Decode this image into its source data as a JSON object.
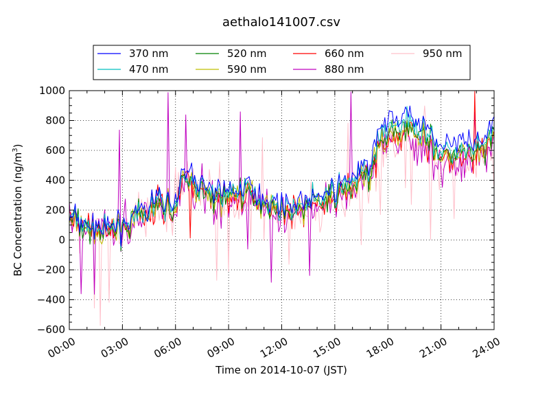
{
  "chart_data": {
    "type": "line",
    "title": "aethalo141007.csv",
    "xlabel": "Time on 2014-10-07 (JST)",
    "ylabel_main": "BC Concentration (ng/m",
    "ylabel_sup": "3",
    "ylabel_close": ")",
    "xlim": [
      0,
      24
    ],
    "ylim": [
      -600,
      1000
    ],
    "xticks": [
      0,
      3,
      6,
      9,
      12,
      15,
      18,
      21,
      24
    ],
    "xtick_labels": [
      "00:00",
      "03:00",
      "06:00",
      "09:00",
      "12:00",
      "15:00",
      "18:00",
      "21:00",
      "24:00"
    ],
    "yticks": [
      -600,
      -400,
      -200,
      0,
      200,
      400,
      600,
      800,
      1000
    ],
    "ytick_labels": [
      "−600",
      "−400",
      "−200",
      "0",
      "200",
      "400",
      "600",
      "800",
      "1000"
    ],
    "grid": true,
    "legend_position": "top",
    "noise_seed": 7,
    "x_step_hours": 0.0833,
    "envelope": {
      "x": [
        0,
        1,
        2,
        3,
        4,
        5,
        6,
        6.5,
        7,
        8,
        9,
        10,
        11,
        12,
        13,
        14,
        15,
        16,
        17,
        17.5,
        18,
        19,
        20,
        21,
        22,
        23,
        24
      ],
      "y": [
        150,
        80,
        60,
        100,
        150,
        250,
        220,
        420,
        380,
        280,
        300,
        320,
        260,
        200,
        220,
        260,
        300,
        380,
        450,
        650,
        720,
        730,
        720,
        560,
        580,
        560,
        700
      ]
    },
    "series": [
      {
        "name": "370 nm",
        "color": "#0000ff",
        "scale": 1.12,
        "noise": 45,
        "spike": 0.0
      },
      {
        "name": "470 nm",
        "color": "#00bfbf",
        "scale": 1.05,
        "noise": 50,
        "spike": 0.0
      },
      {
        "name": "520 nm",
        "color": "#008000",
        "scale": 1.0,
        "noise": 55,
        "spike": 0.0
      },
      {
        "name": "590 nm",
        "color": "#bfbf00",
        "scale": 0.97,
        "noise": 60,
        "spike": 0.0
      },
      {
        "name": "660 nm",
        "color": "#ff0000",
        "scale": 0.95,
        "noise": 75,
        "spike": 0.02
      },
      {
        "name": "880 nm",
        "color": "#bf00bf",
        "scale": 0.9,
        "noise": 100,
        "spike": 0.04
      },
      {
        "name": "950 nm",
        "color": "#ffc0cb",
        "scale": 0.88,
        "noise": 120,
        "spike": 0.07
      }
    ]
  }
}
